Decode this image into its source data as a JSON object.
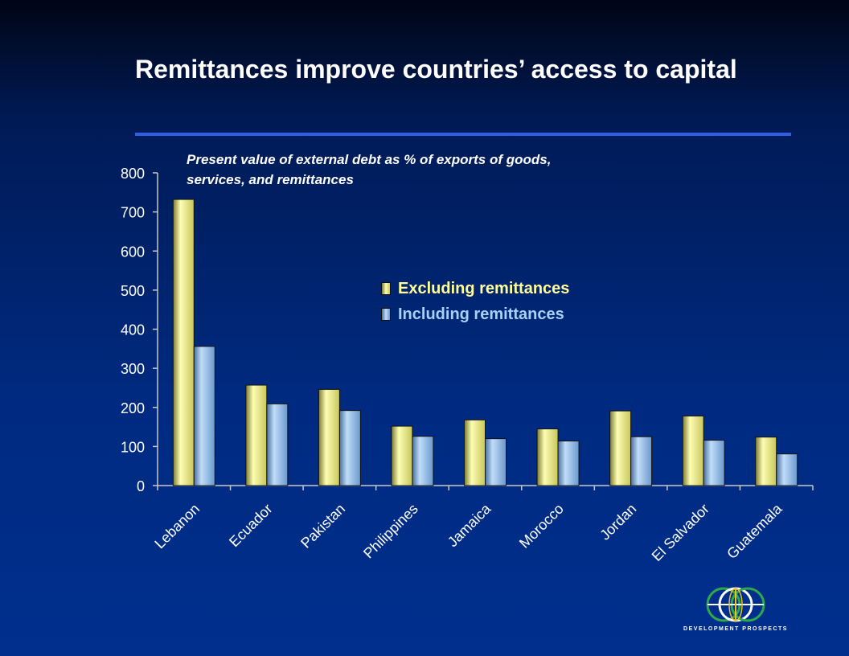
{
  "slide": {
    "title": "Remittances improve countries’ access to capital"
  },
  "logo": {
    "text": "DEVELOPMENT PROSPECTS",
    "icon": "globe-logo-icon"
  },
  "colors": {
    "excluding": "#f0f08a",
    "including": "#9cc6ee",
    "accent_rule": "#2f5ee8",
    "legend_excluding_text": "#ffff99",
    "legend_including_text": "#a8d0f8"
  },
  "chart_data": {
    "type": "bar",
    "title": "Present value of external debt as % of exports of goods, services, and remittances",
    "xlabel": "",
    "ylabel": "",
    "ylim": [
      0,
      800
    ],
    "yticks": [
      0,
      100,
      200,
      300,
      400,
      500,
      600,
      700,
      800
    ],
    "legend_position": "center",
    "grid": false,
    "categories": [
      "Lebanon",
      "Ecuador",
      "Pakistan",
      "Philippines",
      "Jamaica",
      "Morocco",
      "Jordan",
      "El Salvador",
      "Guatemala"
    ],
    "series": [
      {
        "name": "Excluding remittances",
        "values": [
          732,
          257,
          246,
          152,
          168,
          145,
          191,
          178,
          124
        ]
      },
      {
        "name": "Including remittances",
        "values": [
          356,
          209,
          192,
          126,
          120,
          114,
          125,
          116,
          81
        ]
      }
    ]
  }
}
